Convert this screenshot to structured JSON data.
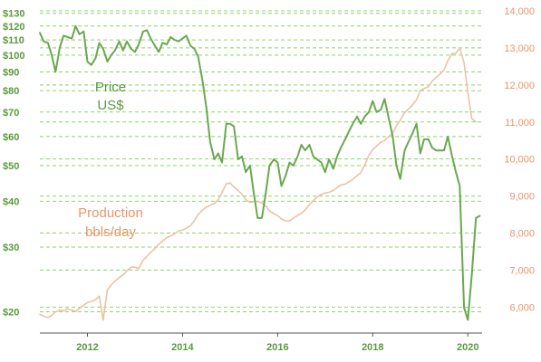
{
  "chart_data": {
    "type": "line",
    "title": "",
    "xlabel": "",
    "x_ticks": [
      "2012",
      "2014",
      "2016",
      "2018",
      "2020"
    ],
    "xlim": [
      2011.0,
      2020.3
    ],
    "left_axis": {
      "scale": "log",
      "ylim": [
        17.5,
        132
      ],
      "tick_values": [
        20,
        30,
        40,
        50,
        60,
        70,
        80,
        90,
        100,
        110,
        120,
        130
      ],
      "tick_labels": [
        "$20",
        "$30",
        "$40",
        "$50",
        "$60",
        "$70",
        "$80",
        "$90",
        "$100",
        "$110",
        "$120",
        "$130"
      ],
      "color": "#5a9a3e"
    },
    "right_axis": {
      "scale": "linear",
      "ylim": [
        5300,
        14000
      ],
      "tick_values": [
        6000,
        7000,
        8000,
        9000,
        10000,
        11000,
        12000,
        13000,
        14000
      ],
      "tick_labels": [
        "6,000",
        "7,000",
        "8,000",
        "9,000",
        "10,000",
        "11,000",
        "12,000",
        "13,000",
        "14,000"
      ],
      "color": "#e8956a"
    },
    "grid": {
      "horizontal": true,
      "style": "dashed",
      "color": "#8fd36a"
    },
    "annotations": {
      "price": [
        "Price",
        "US$"
      ],
      "production": [
        "Production",
        "bbls/day"
      ]
    },
    "series": [
      {
        "name": "Price US$",
        "axis": "left",
        "color": "#6aa84f",
        "points": [
          [
            2011.0,
            115
          ],
          [
            2011.08,
            109
          ],
          [
            2011.17,
            108
          ],
          [
            2011.25,
            100
          ],
          [
            2011.33,
            90
          ],
          [
            2011.42,
            105
          ],
          [
            2011.5,
            113
          ],
          [
            2011.58,
            112
          ],
          [
            2011.67,
            111
          ],
          [
            2011.75,
            120
          ],
          [
            2011.83,
            114
          ],
          [
            2011.92,
            116
          ],
          [
            2012.0,
            96
          ],
          [
            2012.08,
            94
          ],
          [
            2012.17,
            98
          ],
          [
            2012.25,
            108
          ],
          [
            2012.33,
            104
          ],
          [
            2012.42,
            96
          ],
          [
            2012.5,
            100
          ],
          [
            2012.58,
            103
          ],
          [
            2012.67,
            109
          ],
          [
            2012.75,
            103
          ],
          [
            2012.83,
            109
          ],
          [
            2012.92,
            104
          ],
          [
            2013.0,
            102
          ],
          [
            2013.08,
            107
          ],
          [
            2013.17,
            116
          ],
          [
            2013.25,
            117
          ],
          [
            2013.33,
            111
          ],
          [
            2013.42,
            106
          ],
          [
            2013.5,
            102
          ],
          [
            2013.58,
            108
          ],
          [
            2013.67,
            107
          ],
          [
            2013.75,
            112
          ],
          [
            2013.83,
            110
          ],
          [
            2013.92,
            109
          ],
          [
            2014.0,
            111
          ],
          [
            2014.08,
            113
          ],
          [
            2014.17,
            106
          ],
          [
            2014.25,
            104
          ],
          [
            2014.33,
            99
          ],
          [
            2014.42,
            85
          ],
          [
            2014.5,
            72
          ],
          [
            2014.58,
            58
          ],
          [
            2014.67,
            52
          ],
          [
            2014.75,
            54
          ],
          [
            2014.83,
            51
          ],
          [
            2014.92,
            65
          ],
          [
            2015.0,
            65
          ],
          [
            2015.08,
            64
          ],
          [
            2015.17,
            52
          ],
          [
            2015.25,
            53
          ],
          [
            2015.33,
            48
          ],
          [
            2015.42,
            50
          ],
          [
            2015.5,
            42
          ],
          [
            2015.58,
            36
          ],
          [
            2015.67,
            36
          ],
          [
            2015.75,
            42
          ],
          [
            2015.83,
            50
          ],
          [
            2015.92,
            52
          ],
          [
            2016.0,
            51
          ],
          [
            2016.08,
            44
          ],
          [
            2016.17,
            47
          ],
          [
            2016.25,
            51
          ],
          [
            2016.33,
            50
          ],
          [
            2016.42,
            53
          ],
          [
            2016.5,
            57
          ],
          [
            2016.58,
            55
          ],
          [
            2016.67,
            57
          ],
          [
            2016.75,
            53
          ],
          [
            2016.83,
            52
          ],
          [
            2016.92,
            51
          ],
          [
            2017.0,
            48
          ],
          [
            2017.08,
            52
          ],
          [
            2017.17,
            49
          ],
          [
            2017.25,
            53
          ],
          [
            2017.33,
            56
          ],
          [
            2017.42,
            59
          ],
          [
            2017.5,
            62
          ],
          [
            2017.58,
            65
          ],
          [
            2017.67,
            68
          ],
          [
            2017.75,
            65
          ],
          [
            2017.83,
            68
          ],
          [
            2017.92,
            70
          ],
          [
            2018.0,
            75
          ],
          [
            2018.08,
            70
          ],
          [
            2018.17,
            71
          ],
          [
            2018.25,
            76
          ],
          [
            2018.33,
            68
          ],
          [
            2018.42,
            60
          ],
          [
            2018.5,
            50
          ],
          [
            2018.58,
            46
          ],
          [
            2018.67,
            55
          ],
          [
            2018.75,
            58
          ],
          [
            2018.83,
            61
          ],
          [
            2018.92,
            65
          ],
          [
            2019.0,
            54
          ],
          [
            2019.08,
            59
          ],
          [
            2019.17,
            59
          ],
          [
            2019.25,
            56
          ],
          [
            2019.33,
            55
          ],
          [
            2019.42,
            55
          ],
          [
            2019.5,
            55
          ],
          [
            2019.58,
            60
          ],
          [
            2019.67,
            53
          ],
          [
            2019.75,
            48
          ],
          [
            2019.83,
            44
          ],
          [
            2019.92,
            20.5
          ],
          [
            2020.0,
            19
          ],
          [
            2020.08,
            25
          ],
          [
            2020.17,
            36
          ],
          [
            2020.25,
            36.5
          ]
        ]
      },
      {
        "name": "Production bbls/day",
        "axis": "right",
        "color": "#e9c3a6",
        "points": [
          [
            2011.0,
            5800
          ],
          [
            2011.08,
            5760
          ],
          [
            2011.17,
            5720
          ],
          [
            2011.25,
            5780
          ],
          [
            2011.33,
            5870
          ],
          [
            2011.42,
            5920
          ],
          [
            2011.5,
            5900
          ],
          [
            2011.58,
            5950
          ],
          [
            2011.67,
            5920
          ],
          [
            2011.75,
            5880
          ],
          [
            2011.83,
            5960
          ],
          [
            2011.92,
            6050
          ],
          [
            2012.0,
            6120
          ],
          [
            2012.08,
            6150
          ],
          [
            2012.17,
            6200
          ],
          [
            2012.25,
            6300
          ],
          [
            2012.33,
            5650
          ],
          [
            2012.42,
            6470
          ],
          [
            2012.5,
            6600
          ],
          [
            2012.58,
            6700
          ],
          [
            2012.67,
            6800
          ],
          [
            2012.75,
            6870
          ],
          [
            2012.83,
            6980
          ],
          [
            2012.92,
            7080
          ],
          [
            2013.0,
            7080
          ],
          [
            2013.08,
            7040
          ],
          [
            2013.17,
            7270
          ],
          [
            2013.25,
            7370
          ],
          [
            2013.33,
            7480
          ],
          [
            2013.42,
            7580
          ],
          [
            2013.5,
            7700
          ],
          [
            2013.58,
            7780
          ],
          [
            2013.67,
            7880
          ],
          [
            2013.75,
            7920
          ],
          [
            2013.83,
            7980
          ],
          [
            2013.92,
            8050
          ],
          [
            2014.0,
            8080
          ],
          [
            2014.08,
            8130
          ],
          [
            2014.17,
            8200
          ],
          [
            2014.25,
            8330
          ],
          [
            2014.33,
            8500
          ],
          [
            2014.42,
            8620
          ],
          [
            2014.5,
            8700
          ],
          [
            2014.58,
            8750
          ],
          [
            2014.67,
            8800
          ],
          [
            2014.75,
            8900
          ],
          [
            2014.83,
            9100
          ],
          [
            2014.92,
            9330
          ],
          [
            2015.0,
            9350
          ],
          [
            2015.08,
            9250
          ],
          [
            2015.17,
            9150
          ],
          [
            2015.25,
            9050
          ],
          [
            2015.33,
            8900
          ],
          [
            2015.42,
            8830
          ],
          [
            2015.5,
            8850
          ],
          [
            2015.58,
            8850
          ],
          [
            2015.67,
            8820
          ],
          [
            2015.75,
            8730
          ],
          [
            2015.83,
            8600
          ],
          [
            2015.92,
            8520
          ],
          [
            2016.0,
            8470
          ],
          [
            2016.08,
            8380
          ],
          [
            2016.17,
            8330
          ],
          [
            2016.25,
            8330
          ],
          [
            2016.33,
            8400
          ],
          [
            2016.42,
            8480
          ],
          [
            2016.5,
            8530
          ],
          [
            2016.58,
            8630
          ],
          [
            2016.67,
            8770
          ],
          [
            2016.75,
            8880
          ],
          [
            2016.83,
            8970
          ],
          [
            2016.92,
            9050
          ],
          [
            2017.0,
            9080
          ],
          [
            2017.08,
            9100
          ],
          [
            2017.17,
            9150
          ],
          [
            2017.25,
            9230
          ],
          [
            2017.33,
            9300
          ],
          [
            2017.42,
            9320
          ],
          [
            2017.5,
            9380
          ],
          [
            2017.58,
            9450
          ],
          [
            2017.67,
            9550
          ],
          [
            2017.75,
            9630
          ],
          [
            2017.83,
            9830
          ],
          [
            2017.92,
            10100
          ],
          [
            2018.0,
            10250
          ],
          [
            2018.08,
            10350
          ],
          [
            2018.17,
            10450
          ],
          [
            2018.25,
            10500
          ],
          [
            2018.33,
            10600
          ],
          [
            2018.42,
            10700
          ],
          [
            2018.5,
            10900
          ],
          [
            2018.58,
            11050
          ],
          [
            2018.67,
            11250
          ],
          [
            2018.75,
            11350
          ],
          [
            2018.83,
            11450
          ],
          [
            2018.92,
            11600
          ],
          [
            2019.0,
            11850
          ],
          [
            2019.08,
            11900
          ],
          [
            2019.17,
            11950
          ],
          [
            2019.25,
            12100
          ],
          [
            2019.33,
            12200
          ],
          [
            2019.42,
            12300
          ],
          [
            2019.5,
            12400
          ],
          [
            2019.58,
            12650
          ],
          [
            2019.67,
            12850
          ],
          [
            2019.75,
            12850
          ],
          [
            2019.83,
            13000
          ],
          [
            2019.92,
            12600
          ],
          [
            2020.0,
            11800
          ],
          [
            2020.08,
            11100
          ],
          [
            2020.17,
            11000
          ]
        ]
      }
    ]
  }
}
